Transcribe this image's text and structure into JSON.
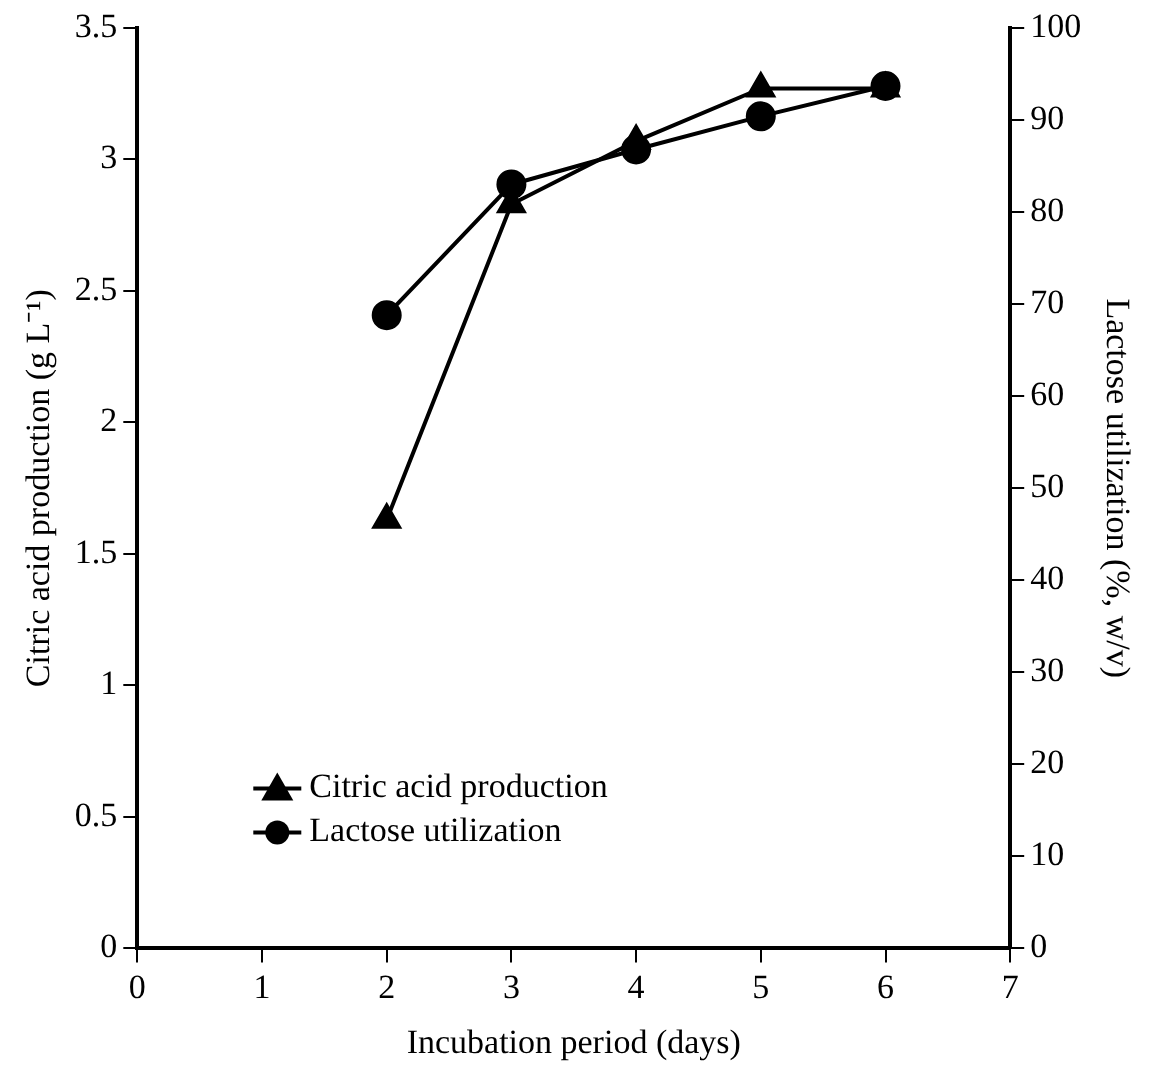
{
  "chart_data": {
    "type": "line",
    "xlabel": "Incubation period (days)",
    "ylabel": "Citric acid production (g L⁻¹)",
    "y2label": "Lactose utilization (%, w/v)",
    "x": [
      2,
      3,
      4,
      5,
      6
    ],
    "series": [
      {
        "name": "Citric acid production",
        "color": "#000000",
        "marker": "triangle",
        "values": [
          1.63,
          2.83,
          3.07,
          3.27,
          3.27
        ]
      },
      {
        "name": "Lactose utilization",
        "color": "#000000",
        "marker": "circle",
        "axis": "y2",
        "values": [
          68.8,
          83,
          86.8,
          90.4,
          93.7
        ]
      }
    ],
    "xlim": [
      0,
      7
    ],
    "xticks": [
      0,
      1,
      2,
      3,
      4,
      5,
      6,
      7
    ],
    "ylim": [
      0,
      3.5
    ],
    "yticks": [
      0,
      0.5,
      1,
      1.5,
      2,
      2.5,
      3,
      3.5
    ],
    "y2lim": [
      0,
      100
    ],
    "y2ticks": [
      0,
      10,
      20,
      30,
      40,
      50,
      60,
      70,
      80,
      90,
      100
    ],
    "grid": false,
    "legend": "bottom left",
    "line_style": "solid"
  }
}
